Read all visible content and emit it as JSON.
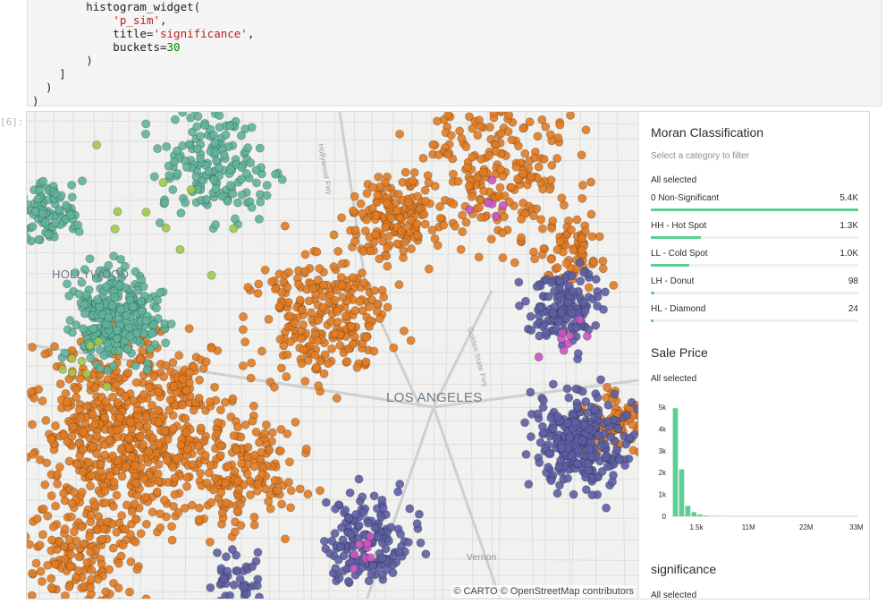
{
  "code": {
    "lines": [
      [
        {
          "t": "        histogram_widget("
        }
      ],
      [
        {
          "t": "            "
        },
        {
          "t": "'p_sim'",
          "c": "str"
        },
        {
          "t": ","
        }
      ],
      [
        {
          "t": "            title="
        },
        {
          "t": "'significance'",
          "c": "str"
        },
        {
          "t": ","
        }
      ],
      [
        {
          "t": "            buckets="
        },
        {
          "t": "30",
          "c": "num"
        }
      ],
      [
        {
          "t": "        )"
        }
      ],
      [
        {
          "t": "    ]"
        }
      ],
      [
        {
          "t": "  )"
        }
      ],
      [
        {
          "t": ")"
        }
      ]
    ]
  },
  "output_prompt": "[6]:",
  "map": {
    "labels": {
      "los_angeles": "LOS ANGELES",
      "hollywood": "HOLLYWOOD",
      "vernon": "Vernon",
      "highway_1": "Hollywood Fwy",
      "highway_2": "Golden State Fwy"
    },
    "attribution": "© CARTO © OpenStreetMap contributors",
    "colors": {
      "non_significant": "#e07b24",
      "hot_spot": "#5d5ea3",
      "cold_spot": "#5fb39a",
      "donut": "#c857c1",
      "diamond": "#a0c84e"
    }
  },
  "widgets": {
    "moran": {
      "title": "Moran Classification",
      "subtitle": "Select a category to filter",
      "selected_label": "All selected",
      "categories": [
        {
          "name": "0 Non-Significant",
          "count": "5.4K",
          "fraction": 1.0
        },
        {
          "name": "HH - Hot Spot",
          "count": "1.3K",
          "fraction": 0.24
        },
        {
          "name": "LL - Cold Spot",
          "count": "1.0K",
          "fraction": 0.185
        },
        {
          "name": "LH - Donut",
          "count": "98",
          "fraction": 0.018
        },
        {
          "name": "HL - Diamond",
          "count": "24",
          "fraction": 0.004
        }
      ],
      "bar_color": "#5dcf94"
    },
    "sale_price": {
      "title": "Sale Price",
      "selected_label": "All selected"
    },
    "significance": {
      "title": "significance",
      "selected_label": "All selected"
    }
  },
  "chart_data": {
    "type": "bar",
    "title": "Sale Price",
    "y_ticks": [
      "0",
      "1k",
      "2k",
      "3k",
      "4k",
      "5k"
    ],
    "x_ticks": [
      "1.5k",
      "11M",
      "22M",
      "33M"
    ],
    "ylim": [
      0,
      5000
    ],
    "xlim": [
      1500,
      35000000
    ],
    "bucket_values": [
      4950,
      2150,
      480,
      190,
      80,
      35,
      18,
      10,
      6,
      4,
      3,
      2,
      2,
      1,
      1,
      1,
      0,
      0,
      0,
      0,
      0,
      0,
      0,
      0,
      0,
      0,
      0,
      0,
      0,
      0
    ],
    "bar_color": "#5dcf94"
  }
}
